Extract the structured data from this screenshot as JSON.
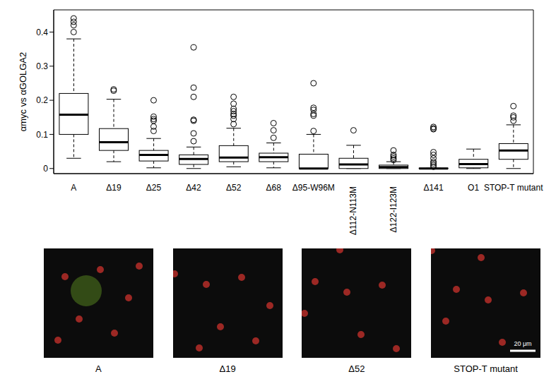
{
  "chart_data": {
    "type": "box",
    "ylabel": "αmyc vs αGOLGA2",
    "categories": [
      "A",
      "Δ19",
      "Δ25",
      "Δ42",
      "Δ52",
      "Δ68",
      "Δ95-W96M",
      "Δ112-N113M",
      "Δ122-I123M",
      "Δ141",
      "O1",
      "STOP-T mutant"
    ],
    "whisker_low": [
      0.03,
      0.02,
      0.002,
      0,
      0.005,
      0.002,
      0,
      0,
      0,
      0,
      0,
      0
    ],
    "q1": [
      0.1,
      0.053,
      0.022,
      0.012,
      0.02,
      0.02,
      0,
      0,
      0,
      0,
      0.002,
      0.027
    ],
    "median": [
      0.158,
      0.077,
      0.04,
      0.028,
      0.032,
      0.033,
      0,
      0.012,
      0.004,
      0,
      0.013,
      0.053
    ],
    "q3": [
      0.22,
      0.117,
      0.053,
      0.04,
      0.067,
      0.045,
      0.042,
      0.03,
      0.01,
      0.001,
      0.027,
      0.073
    ],
    "whisker_high": [
      0.38,
      0.203,
      0.088,
      0.063,
      0.118,
      0.075,
      0.1,
      0.068,
      0.02,
      0.001,
      0.057,
      0.128
    ],
    "outliers": [
      [
        0.44,
        0.43,
        0.42,
        0.4
      ],
      [
        0.232,
        0.228
      ],
      [
        0.2,
        0.152,
        0.145,
        0.14,
        0.123,
        0.11
      ],
      [
        0.355,
        0.237,
        0.21,
        0.143,
        0.14,
        0.103,
        0.08
      ],
      [
        0.21,
        0.19,
        0.175,
        0.168,
        0.16,
        0.155,
        0.145,
        0.13
      ],
      [
        0.133,
        0.112,
        0.09
      ],
      [
        0.25,
        0.178,
        0.172,
        0.16,
        0.155,
        0.11
      ],
      [
        0.112
      ],
      [
        0.053,
        0.04,
        0.035,
        0.03,
        0.025
      ],
      [
        0.122,
        0.118,
        0.115,
        0.048,
        0.04,
        0.03,
        0.02,
        0.015,
        0.01,
        0.005
      ],
      [],
      [
        0.183,
        0.155,
        0.15,
        0.14
      ]
    ],
    "ylim": [
      -0.015,
      0.465
    ],
    "yticks": [
      0,
      0.1,
      0.2,
      0.3,
      0.4
    ],
    "grid": false,
    "color": "#000000"
  },
  "images": {
    "labels": [
      "A",
      "Δ19",
      "Δ52",
      "STOP-T mutant"
    ],
    "scale_bar": "20 μm"
  }
}
